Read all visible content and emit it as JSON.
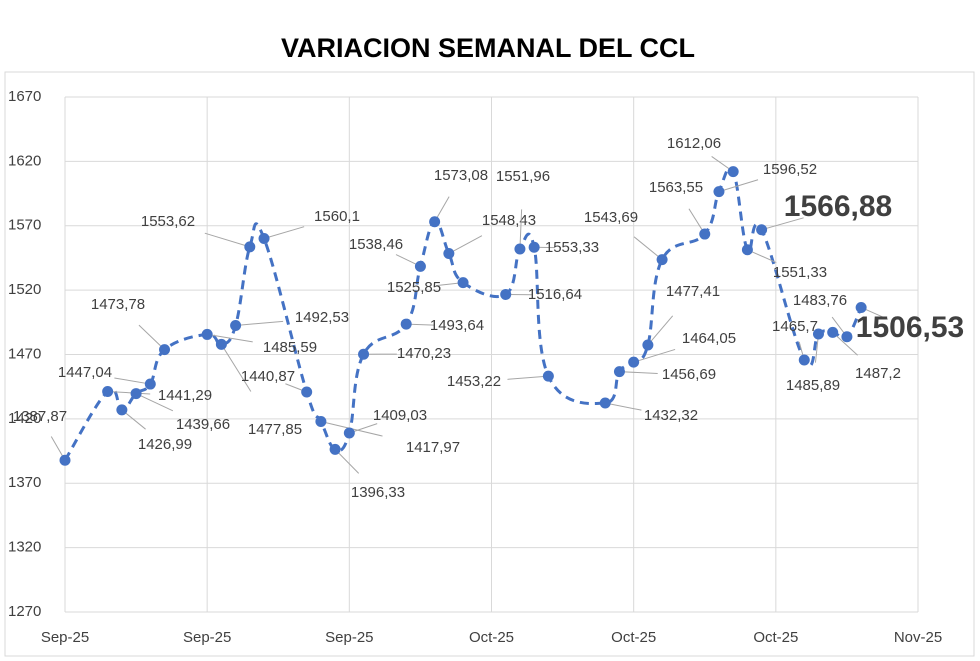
{
  "chart_data": {
    "type": "line",
    "title": "VARIACION SEMANAL DEL CCL",
    "x": [
      0,
      3,
      4,
      5,
      6,
      7,
      10,
      11,
      12,
      13,
      14,
      17,
      18,
      19,
      20,
      21,
      24,
      25,
      26,
      27,
      28,
      31,
      32,
      33,
      34,
      38,
      39,
      40,
      41,
      42,
      45,
      46,
      47,
      48,
      49,
      52,
      53,
      54,
      55,
      56
    ],
    "xlim": [
      0,
      60
    ],
    "xticks": [
      {
        "value": 0,
        "label": "Sep-25"
      },
      {
        "value": 10,
        "label": "Sep-25"
      },
      {
        "value": 20,
        "label": "Sep-25"
      },
      {
        "value": 30,
        "label": "Oct-25"
      },
      {
        "value": 40,
        "label": "Oct-25"
      },
      {
        "value": 50,
        "label": "Oct-25"
      },
      {
        "value": 60,
        "label": "Nov-25"
      }
    ],
    "series": [
      {
        "name": "CCL",
        "color": "#4472c4",
        "values": [
          1387.87,
          1441.29,
          1426.99,
          1439.66,
          1447.04,
          1473.78,
          1485.59,
          1477.85,
          1492.53,
          1553.62,
          1560.1,
          1440.87,
          1417.97,
          1396.33,
          1409.03,
          1470.23,
          1493.64,
          1538.46,
          1573.08,
          1548.43,
          1525.85,
          1516.64,
          1551.96,
          1553.33,
          1453.22,
          1432.32,
          1456.69,
          1464.05,
          1477.41,
          1543.69,
          1563.55,
          1596.52,
          1612.06,
          1551.33,
          1566.88,
          1465.7,
          1485.89,
          1487.2,
          1483.76,
          1506.53
        ],
        "value_labels": [
          "1387,87",
          "1441,29",
          "1426,99",
          "1439,66",
          "1447,04",
          "1473,78",
          "1485,59",
          "1477,85",
          "1492,53",
          "1553,62",
          "1560,1",
          "1440,87",
          "1417,97",
          "1396,33",
          "1409,03",
          "1470,23",
          "1493,64",
          "1538,46",
          "1573,08",
          "1548,43",
          "1525,85",
          "1516,64",
          "1551,96",
          "1553,33",
          "1453,22",
          "1432,32",
          "1456,69",
          "1464,05",
          "1477,41",
          "1543,69",
          "1563,55",
          "1596,52",
          "1612,06",
          "1551,33",
          "1566,88",
          "1465,7",
          "1485,89",
          "1487,2",
          "1483,76",
          "1506,53"
        ]
      }
    ],
    "ylim": [
      1270,
      1670
    ],
    "yticks": [
      1270,
      1320,
      1370,
      1420,
      1470,
      1520,
      1570,
      1620,
      1670
    ],
    "grid": true
  }
}
